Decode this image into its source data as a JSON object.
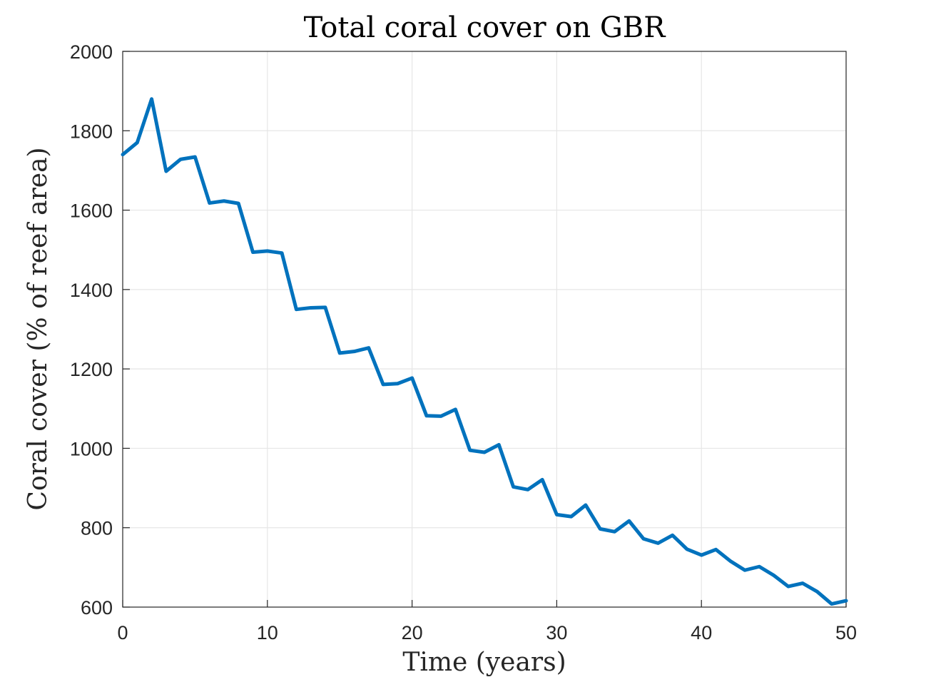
{
  "chart_data": {
    "type": "line",
    "title": "Total coral cover on GBR",
    "xlabel": "Time (years)",
    "ylabel": "Coral cover (% of reef area)",
    "xlim": [
      0,
      50
    ],
    "ylim": [
      600,
      2000
    ],
    "xticks": [
      0,
      10,
      20,
      30,
      40,
      50
    ],
    "yticks": [
      600,
      800,
      1000,
      1200,
      1400,
      1600,
      1800,
      2000
    ],
    "xtick_labels": [
      "0",
      "10",
      "20",
      "30",
      "40",
      "50"
    ],
    "ytick_labels": [
      "600",
      "800",
      "1000",
      "1200",
      "1400",
      "1600",
      "1800",
      "2000"
    ],
    "grid": true,
    "line_color": "#0072BD",
    "series": [
      {
        "x": [
          0,
          1,
          2,
          3,
          4,
          5,
          6,
          7,
          8,
          9,
          10,
          11,
          12,
          13,
          14,
          15,
          16,
          17,
          18,
          19,
          20,
          21,
          22,
          23,
          24,
          25,
          26,
          27,
          28,
          29,
          30,
          31,
          32,
          33,
          34,
          35,
          36,
          37,
          38,
          39,
          40,
          41,
          42,
          43,
          44,
          45,
          46,
          47,
          48,
          49,
          50
        ],
        "values": [
          1740,
          1770,
          1880,
          1698,
          1728,
          1734,
          1618,
          1623,
          1617,
          1494,
          1497,
          1492,
          1350,
          1354,
          1355,
          1240,
          1244,
          1253,
          1161,
          1163,
          1177,
          1082,
          1081,
          1098,
          995,
          990,
          1009,
          903,
          896,
          921,
          833,
          828,
          857,
          797,
          790,
          817,
          772,
          761,
          781,
          746,
          731,
          745,
          716,
          693,
          702,
          680,
          652,
          660,
          639,
          608,
          616
        ]
      }
    ]
  }
}
